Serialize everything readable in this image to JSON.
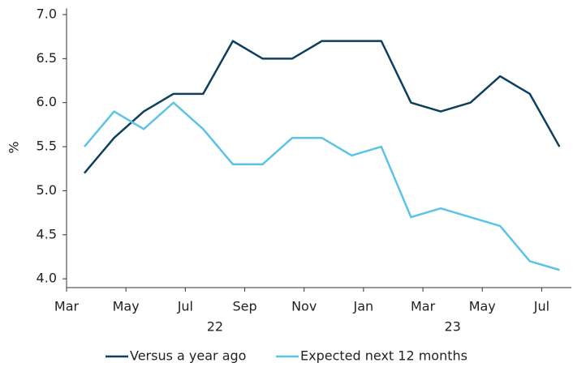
{
  "chart_data": {
    "type": "line",
    "y_label": "%",
    "x": [
      "2022-03",
      "2022-04",
      "2022-05",
      "2022-06",
      "2022-07",
      "2022-08",
      "2022-09",
      "2022-10",
      "2022-11",
      "2022-12",
      "2023-01",
      "2023-02",
      "2023-03",
      "2023-04",
      "2023-05",
      "2023-06",
      "2023-07"
    ],
    "series": [
      {
        "name": "Versus a year ago",
        "color": "#0d3f5e",
        "values": [
          5.2,
          5.6,
          5.9,
          6.1,
          6.1,
          6.7,
          6.5,
          6.5,
          6.7,
          6.7,
          6.7,
          6.0,
          5.9,
          6.0,
          6.3,
          6.1,
          5.5
        ]
      },
      {
        "name": "Expected next 12 months",
        "color": "#5bc4e6",
        "values": [
          5.5,
          5.9,
          5.7,
          6.0,
          5.7,
          5.3,
          5.3,
          5.6,
          5.6,
          5.4,
          5.5,
          4.7,
          4.8,
          4.7,
          4.6,
          4.2,
          4.1
        ]
      }
    ],
    "ylim": [
      3.9,
      7.07
    ],
    "yticks": [
      {
        "value": 4,
        "label": "4.0"
      },
      4.5,
      {
        "value": 5,
        "label": "5.0"
      },
      5.5,
      {
        "value": 6,
        "label": "6.0"
      },
      6.5,
      {
        "value": 7,
        "label": "7.0"
      }
    ],
    "xlim": [
      "2022-03",
      "2023-08"
    ],
    "xticks": [
      {
        "value": "2022-03",
        "label": "Mar"
      },
      {
        "value": "2022-05",
        "label": "May"
      },
      {
        "value": "2022-07",
        "label": "Jul"
      },
      {
        "value": "2022-09",
        "label": "Sep"
      },
      {
        "value": "2022-11",
        "label": "Nov"
      },
      {
        "value": "2023-01",
        "label": "Jan"
      },
      {
        "value": "2023-03",
        "label": "Mar"
      },
      {
        "value": "2023-05",
        "label": "May"
      },
      {
        "value": "2023-07",
        "label": "Jul"
      }
    ],
    "year_labels": [
      {
        "value": "2022-08",
        "label": "22"
      },
      {
        "value": "2023-04",
        "label": "23"
      }
    ],
    "legend": "bottom"
  }
}
